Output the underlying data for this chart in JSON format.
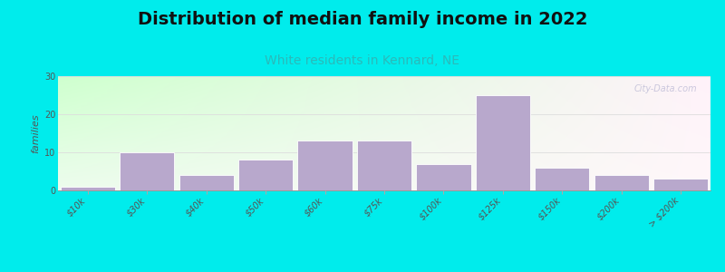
{
  "title": "Distribution of median family income in 2022",
  "subtitle": "White residents in Kennard, NE",
  "ylabel": "families",
  "categories": [
    "$10k",
    "$30k",
    "$40k",
    "$50k",
    "$60k",
    "$75k",
    "$100k",
    "$125k",
    "$150k",
    "$200k",
    "> $200k"
  ],
  "values": [
    1,
    10,
    4,
    8,
    13,
    13,
    7,
    25,
    6,
    4,
    3
  ],
  "bar_color": "#b8a8cc",
  "bar_edge_color": "#ffffff",
  "background_outer": "#00ecec",
  "ylim": [
    0,
    30
  ],
  "yticks": [
    0,
    10,
    20,
    30
  ],
  "grid_color": "#dddddd",
  "title_fontsize": 14,
  "title_color": "#111111",
  "subtitle_fontsize": 10,
  "subtitle_color": "#2ababa",
  "ylabel_fontsize": 8,
  "tick_fontsize": 7,
  "watermark": "City-Data.com"
}
